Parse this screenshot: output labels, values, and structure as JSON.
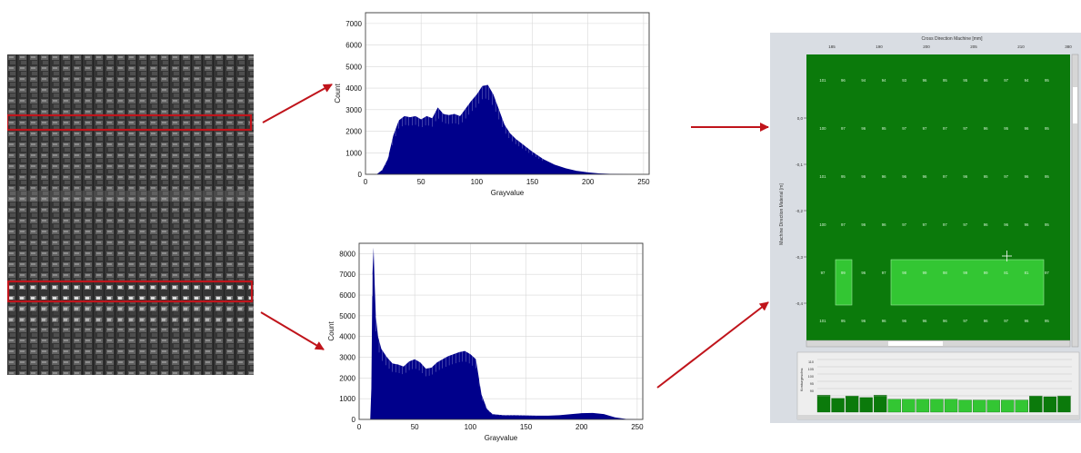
{
  "colors": {
    "highlight_box": "#c0141b",
    "arrow": "#c0141b",
    "histogram_fill": "#00008b",
    "map_dark_green": "#0b7a0b",
    "map_light_green": "#33c633",
    "map_text": "#d8f5d8",
    "panel_bg": "#d9dde3"
  },
  "fabric_image": {
    "highlight_boxes": [
      "upper-row-box",
      "lower-row-box"
    ]
  },
  "histograms": [
    {
      "ylabel": "Count",
      "xlabel": "Grayvalue",
      "ylim": [
        0,
        7500
      ],
      "xlim": [
        0,
        255
      ],
      "yticks": [
        0,
        1000,
        2000,
        3000,
        4000,
        5000,
        6000,
        7000
      ],
      "xticks": [
        0,
        50,
        100,
        150,
        200,
        250
      ],
      "chart_data": {
        "type": "area",
        "x": [
          10,
          15,
          20,
          25,
          30,
          35,
          40,
          45,
          50,
          55,
          60,
          65,
          70,
          75,
          80,
          85,
          90,
          95,
          100,
          105,
          110,
          115,
          120,
          125,
          130,
          135,
          140,
          150,
          160,
          170,
          180,
          190,
          200,
          210,
          220,
          230,
          240,
          250
        ],
        "y": [
          0,
          200,
          700,
          1800,
          2500,
          2700,
          2650,
          2700,
          2550,
          2700,
          2600,
          3100,
          2800,
          2750,
          2800,
          2700,
          3050,
          3400,
          3700,
          4100,
          4150,
          3700,
          3000,
          2300,
          1900,
          1650,
          1450,
          1050,
          700,
          450,
          280,
          160,
          90,
          40,
          20,
          10,
          0,
          0
        ]
      }
    },
    {
      "ylabel": "Count",
      "xlabel": "Grayvalue",
      "ylim": [
        0,
        8500
      ],
      "xlim": [
        0,
        255
      ],
      "yticks": [
        0,
        1000,
        2000,
        3000,
        4000,
        5000,
        6000,
        7000,
        8000
      ],
      "xticks": [
        0,
        50,
        100,
        150,
        200,
        250
      ],
      "chart_data": {
        "type": "area",
        "x": [
          10,
          11,
          12,
          13,
          14,
          15,
          17,
          20,
          25,
          30,
          35,
          40,
          45,
          50,
          55,
          60,
          65,
          70,
          75,
          80,
          85,
          90,
          95,
          100,
          105,
          110,
          115,
          120,
          130,
          140,
          150,
          160,
          170,
          180,
          190,
          200,
          210,
          220,
          230,
          240,
          250
        ],
        "y": [
          0,
          1500,
          7000,
          8300,
          6500,
          5000,
          4000,
          3400,
          3000,
          2700,
          2650,
          2550,
          2800,
          2900,
          2750,
          2450,
          2500,
          2750,
          2900,
          3050,
          3150,
          3250,
          3300,
          3150,
          2900,
          1200,
          500,
          250,
          200,
          200,
          190,
          180,
          180,
          200,
          250,
          300,
          310,
          260,
          100,
          20,
          0
        ]
      }
    }
  ],
  "quality_map": {
    "top_axis_title": "Cross Direction Machine [mm]",
    "top_ticks": [
      "185",
      "190",
      "200",
      "205",
      "210",
      "380"
    ],
    "left_axis_title": "Machine Direction Material [m]",
    "left_ticks": [
      "0,0",
      "-0,1",
      "-0,2",
      "-0,3",
      "-0,4"
    ],
    "row_values": [
      [
        "101",
        "96",
        "94",
        "94",
        "93",
        "96",
        "95",
        "95",
        "96",
        "97",
        "94",
        "95"
      ],
      [
        "100",
        "97",
        "96",
        "95",
        "97",
        "97",
        "97",
        "97",
        "96",
        "95",
        "96",
        "95"
      ],
      [
        "101",
        "95",
        "96",
        "96",
        "96",
        "96",
        "97",
        "96",
        "95",
        "97",
        "96",
        "95"
      ],
      [
        "100",
        "97",
        "96",
        "96",
        "97",
        "97",
        "97",
        "97",
        "96",
        "96",
        "96",
        "95"
      ],
      [
        "97",
        "99",
        "96",
        "97",
        "98",
        "99",
        "98",
        "99",
        "99",
        "81",
        "81",
        "97"
      ],
      [
        "101",
        "95",
        "96",
        "96",
        "96",
        "96",
        "96",
        "97",
        "96",
        "97",
        "96",
        "95"
      ]
    ],
    "bottom_axis_ticks": [
      "110",
      "105",
      "100",
      "95",
      "90"
    ],
    "bottom_axis_title": "Konturgeschw.",
    "profile_levels": [
      92,
      88,
      91,
      89,
      92,
      87,
      87,
      87,
      87,
      87,
      86,
      86,
      86,
      86,
      86,
      91,
      90,
      91
    ]
  }
}
